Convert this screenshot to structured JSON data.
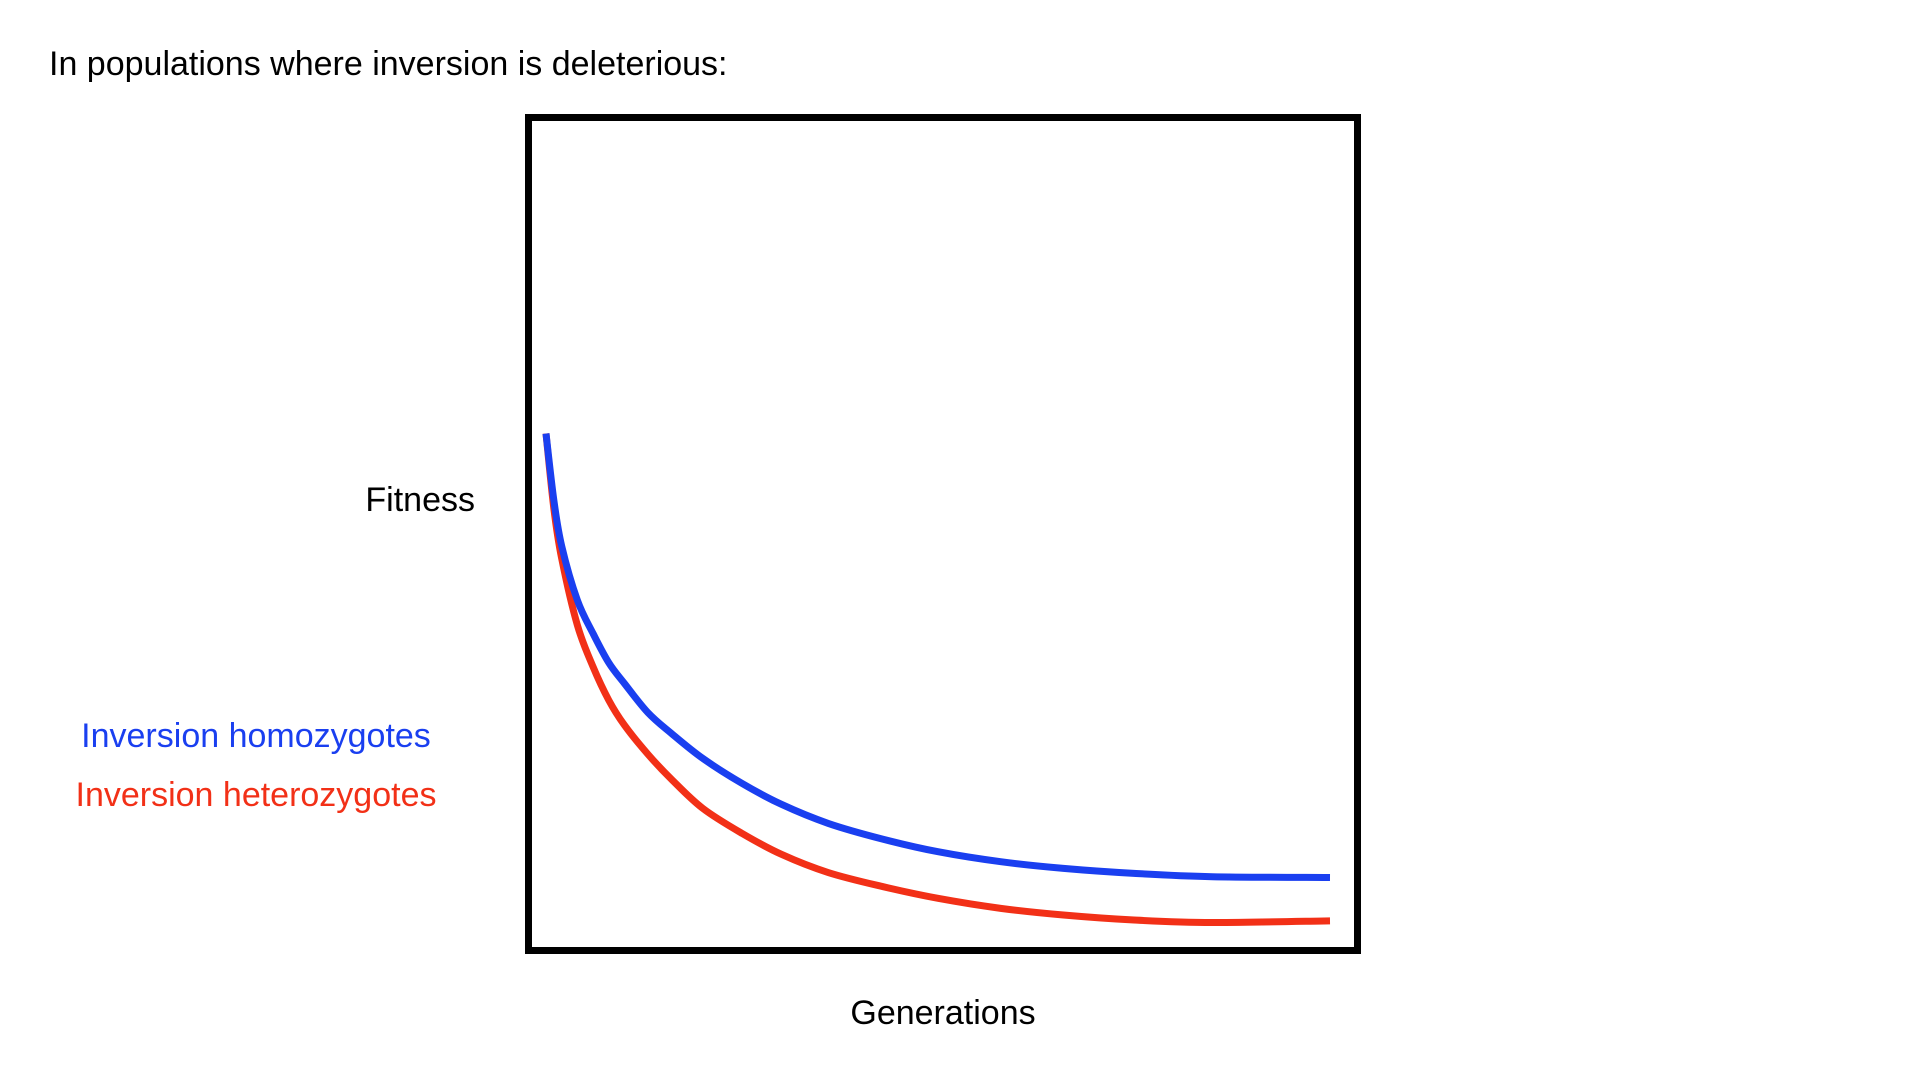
{
  "slide": {
    "title": "In populations where inversion is deleterious:"
  },
  "chart_data": {
    "type": "line",
    "title": "",
    "xlabel": "Generations",
    "ylabel": "Fitness",
    "xlim": [
      0,
      100
    ],
    "ylim": [
      0,
      100
    ],
    "grid": false,
    "legend": "left",
    "show_ticks": false,
    "series": [
      {
        "name": "Inversion homozygotes",
        "color": "#1a3ff0",
        "x": [
          0,
          1,
          2,
          4,
          6,
          8,
          10,
          13,
          16,
          20,
          25,
          30,
          36,
          43,
          50,
          58,
          66,
          75,
          85,
          100
        ],
        "y": [
          62,
          54,
          48.5,
          42,
          38,
          34.5,
          32,
          28.5,
          26,
          23,
          20,
          17.5,
          15.2,
          13.3,
          11.8,
          10.6,
          9.8,
          9.2,
          8.8,
          8.7
        ]
      },
      {
        "name": "Inversion heterozygotes",
        "color": "#f23017",
        "x": [
          0,
          1,
          2,
          4,
          6,
          8,
          10,
          13,
          16,
          20,
          25,
          30,
          36,
          43,
          50,
          58,
          66,
          75,
          85,
          100
        ],
        "y": [
          62,
          53,
          47,
          39,
          34,
          30,
          27,
          23.5,
          20.5,
          17,
          14,
          11.5,
          9.3,
          7.6,
          6.2,
          5,
          4.2,
          3.6,
          3.3,
          3.5
        ]
      }
    ]
  }
}
